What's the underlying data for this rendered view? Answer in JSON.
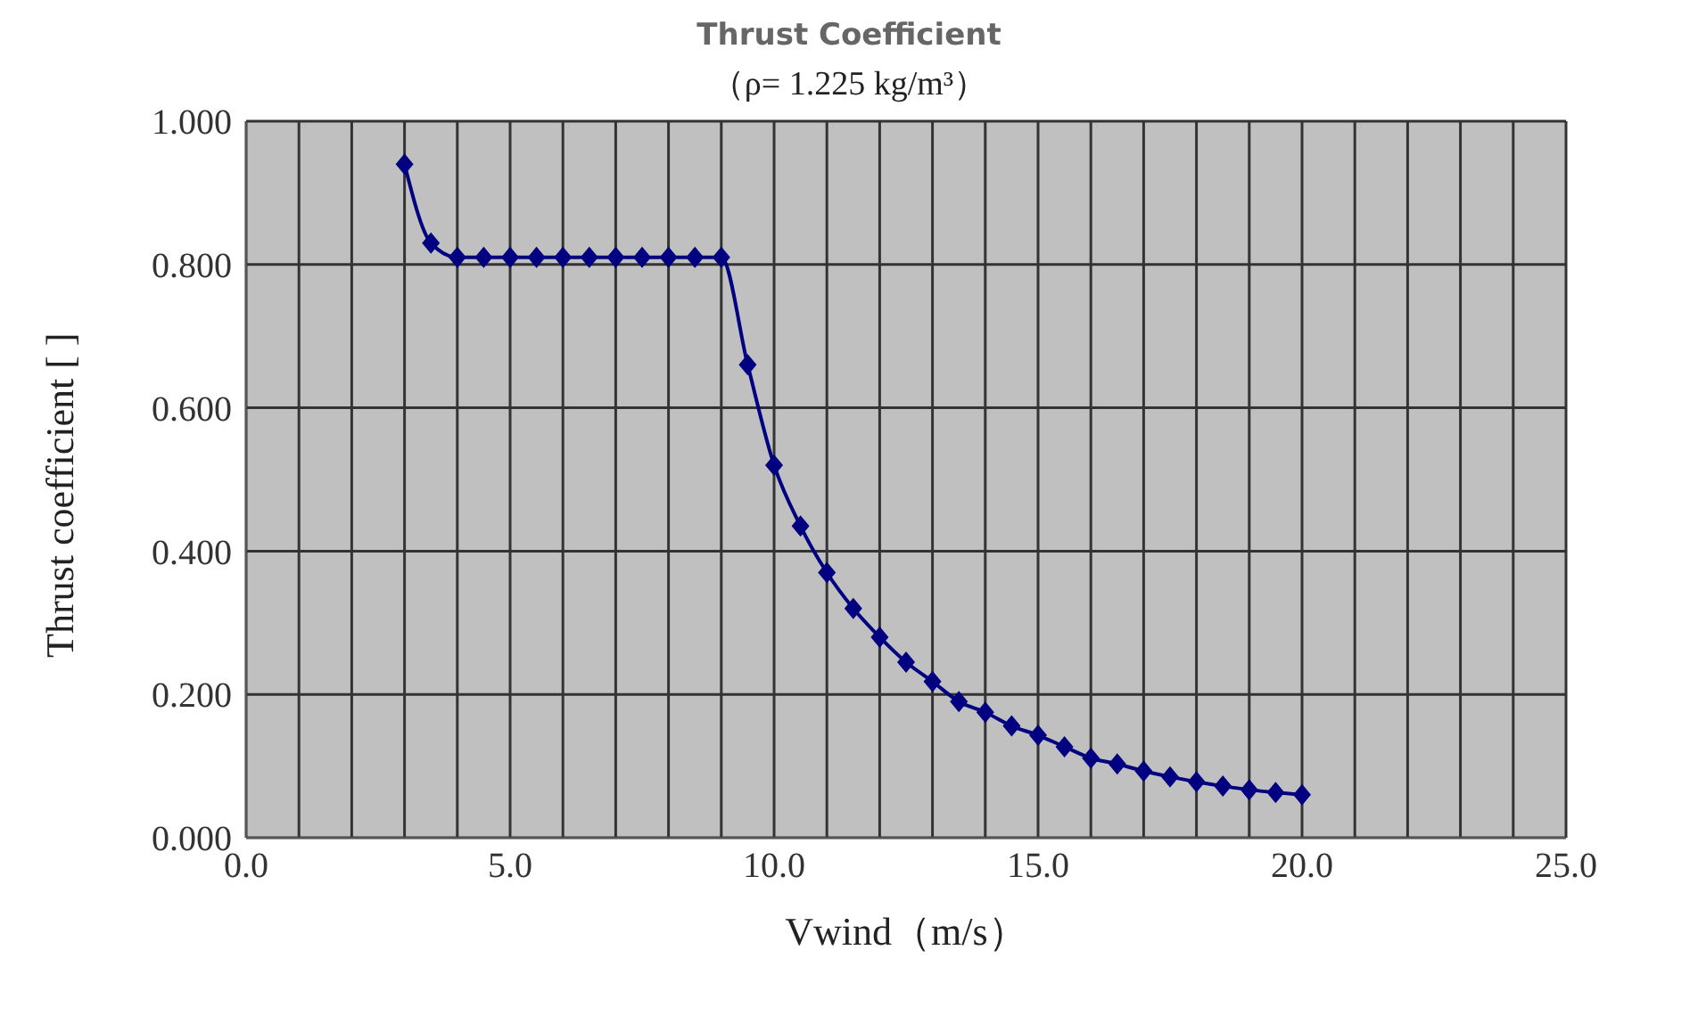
{
  "chart_data": {
    "type": "line",
    "title": "Thrust Coefficient",
    "subtitle": "（ρ= 1.225 kg/m³）",
    "xlabel": "Vwind（m/s）",
    "ylabel": "Thrust coefficient [ ]",
    "x": [
      3.0,
      3.5,
      4.0,
      4.5,
      5.0,
      5.5,
      6.0,
      6.5,
      7.0,
      7.5,
      8.0,
      8.5,
      9.0,
      9.5,
      10.0,
      10.5,
      11.0,
      11.5,
      12.0,
      12.5,
      13.0,
      13.5,
      14.0,
      14.5,
      15.0,
      15.5,
      16.0,
      16.5,
      17.0,
      17.5,
      18.0,
      18.5,
      19.0,
      19.5,
      20.0
    ],
    "series": [
      {
        "color": "#000080",
        "values": [
          0.94,
          0.83,
          0.81,
          0.81,
          0.81,
          0.81,
          0.81,
          0.81,
          0.81,
          0.81,
          0.81,
          0.81,
          0.81,
          0.66,
          0.52,
          0.435,
          0.37,
          0.32,
          0.28,
          0.245,
          0.218,
          0.19,
          0.175,
          0.156,
          0.143,
          0.127,
          0.111,
          0.103,
          0.093,
          0.085,
          0.078,
          0.072,
          0.067,
          0.063,
          0.06
        ]
      }
    ],
    "xlim": [
      0,
      25
    ],
    "xticks": [
      {
        "value": 0,
        "label": "0.0"
      },
      {
        "value": 1,
        "label": null
      },
      {
        "value": 2,
        "label": null
      },
      {
        "value": 3,
        "label": null
      },
      {
        "value": 4,
        "label": null
      },
      {
        "value": 5,
        "label": "5.0"
      },
      {
        "value": 6,
        "label": null
      },
      {
        "value": 7,
        "label": null
      },
      {
        "value": 8,
        "label": null
      },
      {
        "value": 9,
        "label": null
      },
      {
        "value": 10,
        "label": "10.0"
      },
      {
        "value": 11,
        "label": null
      },
      {
        "value": 12,
        "label": null
      },
      {
        "value": 13,
        "label": null
      },
      {
        "value": 14,
        "label": null
      },
      {
        "value": 15,
        "label": "15.0"
      },
      {
        "value": 16,
        "label": null
      },
      {
        "value": 17,
        "label": null
      },
      {
        "value": 18,
        "label": null
      },
      {
        "value": 19,
        "label": null
      },
      {
        "value": 20,
        "label": "20.0"
      },
      {
        "value": 21,
        "label": null
      },
      {
        "value": 22,
        "label": null
      },
      {
        "value": 23,
        "label": null
      },
      {
        "value": 24,
        "label": null
      },
      {
        "value": 25,
        "label": "25.0"
      }
    ],
    "ylim": [
      0,
      1
    ],
    "yticks": [
      {
        "value": 0,
        "label": "0.000"
      },
      {
        "value": 0.2,
        "label": "0.200"
      },
      {
        "value": 0.4,
        "label": "0.400"
      },
      {
        "value": 0.6,
        "label": "0.600"
      },
      {
        "value": 0.8,
        "label": "0.800"
      },
      {
        "value": 1,
        "label": "1.000"
      }
    ],
    "grid": true,
    "marker": "diamond",
    "line_style": "solid",
    "legend": false
  }
}
